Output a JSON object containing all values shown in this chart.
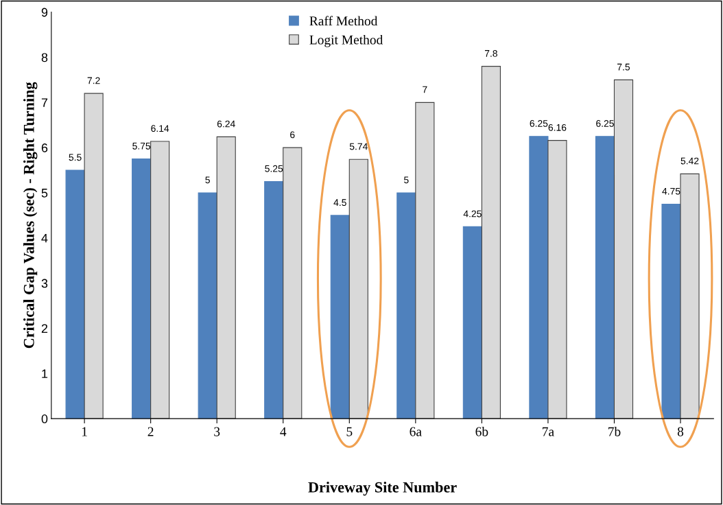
{
  "chart_data": {
    "type": "bar",
    "ylabel": "Critical Gap Values (sec) - Right Turning",
    "xlabel": "Driveway Site Number",
    "categories": [
      "1",
      "2",
      "3",
      "4",
      "5",
      "6a",
      "6b",
      "7a",
      "7b",
      "8"
    ],
    "series": [
      {
        "name": "Raff Method",
        "color": "#4f81bd",
        "values": [
          5.5,
          5.75,
          5,
          5.25,
          4.5,
          5,
          4.25,
          6.25,
          6.25,
          4.75
        ]
      },
      {
        "name": "Logit Method",
        "color": "#d9d9d9",
        "values": [
          7.2,
          6.14,
          6.24,
          6,
          5.74,
          7,
          7.8,
          6.16,
          7.5,
          5.42
        ]
      }
    ],
    "ylim": [
      0,
      9
    ],
    "yticks": [
      0,
      1,
      2,
      3,
      4,
      5,
      6,
      7,
      8,
      9
    ],
    "data_labels": true,
    "legend": "top",
    "grid": false
  }
}
